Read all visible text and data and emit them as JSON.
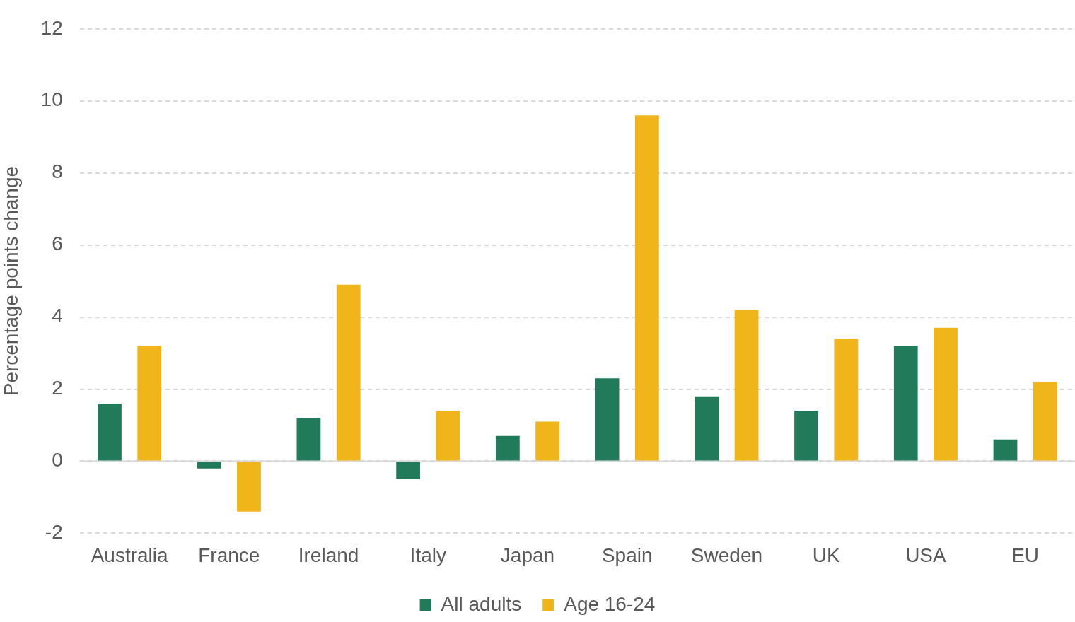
{
  "chart_data": {
    "type": "bar",
    "ylabel": "Percentage points change",
    "categories": [
      "Australia",
      "France",
      "Ireland",
      "Italy",
      "Japan",
      "Spain",
      "Sweden",
      "UK",
      "USA",
      "EU"
    ],
    "series": [
      {
        "name": "All adults",
        "color": "#217a5a",
        "values": [
          1.6,
          -0.2,
          1.2,
          -0.5,
          0.7,
          2.3,
          1.8,
          1.4,
          3.2,
          0.6
        ]
      },
      {
        "name": "Age 16-24",
        "color": "#f0b51b",
        "values": [
          3.2,
          -1.4,
          4.9,
          1.4,
          1.1,
          9.6,
          4.2,
          3.4,
          3.7,
          2.2
        ]
      }
    ],
    "ylim": [
      -2,
      12
    ],
    "yticks": [
      -2,
      0,
      2,
      4,
      6,
      8,
      10,
      12
    ],
    "grid": "y",
    "legend": "bottom"
  }
}
